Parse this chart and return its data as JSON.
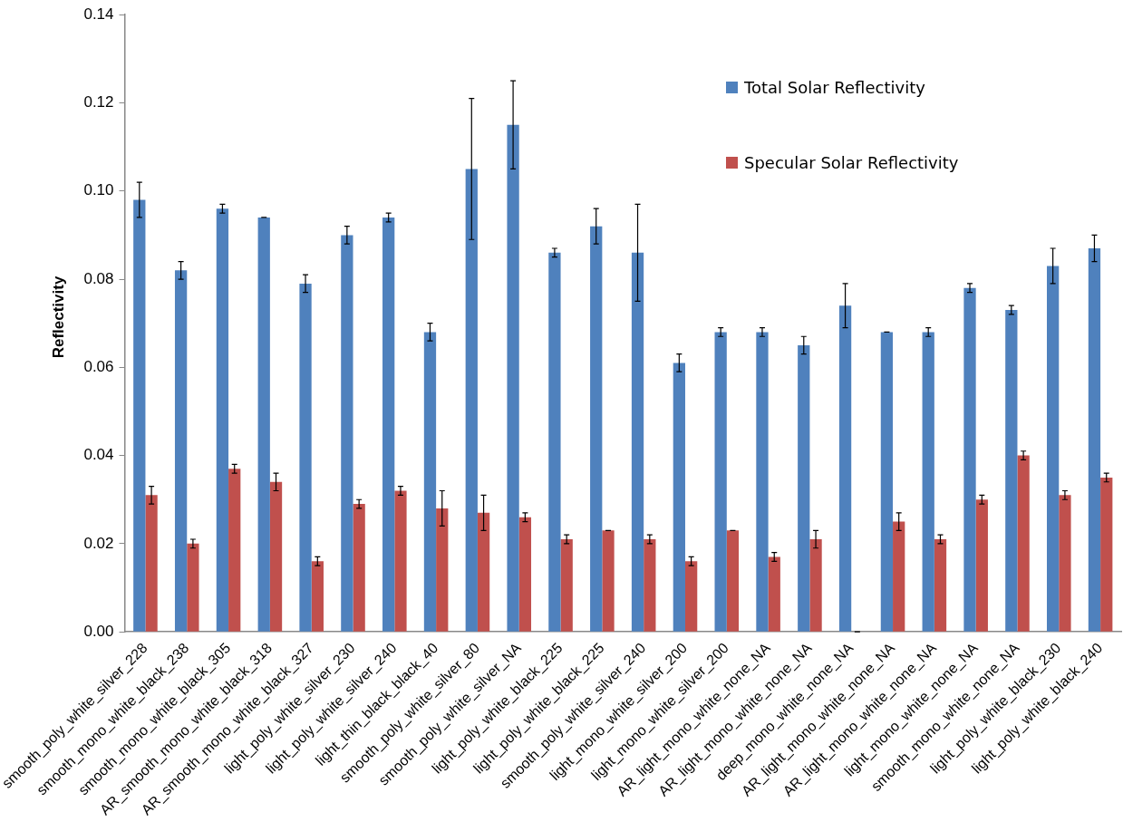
{
  "chart_data": {
    "type": "bar",
    "ylabel": "Reflectivity",
    "categories": [
      "smooth_poly_white_silver_228",
      "smooth_mono_white_black_238",
      "smooth_mono_white_black_305",
      "AR_smooth_mono_white_black_318",
      "AR_smooth_mono_white_black_327",
      "light_poly_white_silver_230",
      "light_poly_white_silver_240",
      "light_thin_black_black_40",
      "smooth_poly_white_silver_80",
      "smooth_poly_white_silver_NA",
      "light_poly_white_black_225",
      "light_poly_white_black_225",
      "smooth_poly_white_silver_240",
      "light_mono_white_silver_200",
      "light_mono_white_silver_200",
      "AR_light_mono_white_none_NA",
      "AR_light_mono_white_none_NA",
      "deep_mono_white_none_NA",
      "AR_light_mono_white_none_NA",
      "AR_light_mono_white_none_NA",
      "light_mono_white_none_NA",
      "smooth_mono_white_none_NA",
      "light_poly_white_black_230",
      "light_poly_white_black_240"
    ],
    "series": [
      {
        "name": "Total Solar Reflectivity",
        "color": "#4f81bd",
        "values": [
          0.098,
          0.082,
          0.096,
          0.094,
          0.079,
          0.09,
          0.094,
          0.068,
          0.105,
          0.115,
          0.086,
          0.092,
          0.086,
          0.061,
          0.068,
          0.068,
          0.065,
          0.074,
          0.068,
          0.068,
          0.078,
          0.073,
          0.083,
          0.087
        ],
        "errors": [
          0.004,
          0.002,
          0.001,
          0,
          0.002,
          0.002,
          0.001,
          0.002,
          0.016,
          0.01,
          0.001,
          0.004,
          0.011,
          0.002,
          0.001,
          0.001,
          0.002,
          0.005,
          0,
          0.001,
          0.001,
          0.001,
          0.004,
          0.003
        ]
      },
      {
        "name": "Specular Solar Reflectivity",
        "color": "#c0504d",
        "values": [
          0.031,
          0.02,
          0.037,
          0.034,
          0.016,
          0.029,
          0.032,
          0.028,
          0.027,
          0.026,
          0.021,
          0.023,
          0.021,
          0.016,
          0.023,
          0.017,
          0.021,
          0,
          0.025,
          0.021,
          0.03,
          0.04,
          0.031,
          0.035
        ],
        "errors": [
          0.002,
          0.001,
          0.001,
          0.002,
          0.001,
          0.001,
          0.001,
          0.004,
          0.004,
          0.001,
          0.001,
          0,
          0.001,
          0.001,
          0,
          0.001,
          0.002,
          0,
          0.002,
          0.001,
          0.001,
          0.001,
          0.001,
          0.001
        ]
      }
    ],
    "ylim": [
      0,
      0.14
    ],
    "yticks": [
      {
        "value": 0,
        "label": "0.00"
      },
      {
        "value": 0.02,
        "label": "0.02"
      },
      {
        "value": 0.04,
        "label": "0.04"
      },
      {
        "value": 0.06,
        "label": "0.06"
      },
      {
        "value": 0.08,
        "label": "0.08"
      },
      {
        "value": 0.1,
        "label": "0.10"
      },
      {
        "value": 0.12,
        "label": "0.12"
      },
      {
        "value": 0.14,
        "label": "0.14"
      }
    ],
    "grid": false,
    "legend": "top right"
  }
}
